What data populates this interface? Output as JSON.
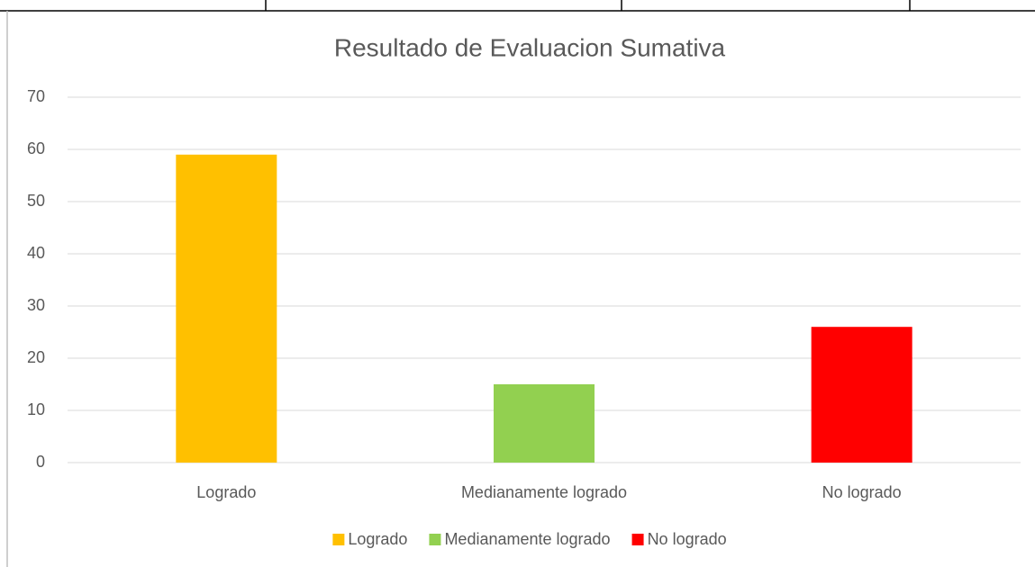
{
  "chart_data": {
    "type": "bar",
    "title": "Resultado de Evaluacion Sumativa",
    "categories": [
      "Logrado",
      "Medianamente logrado",
      "No logrado"
    ],
    "values": [
      59,
      15,
      26
    ],
    "colors": [
      "#ffc000",
      "#92d050",
      "#ff0000"
    ],
    "ylim": [
      0,
      70
    ],
    "yticks": [
      0,
      10,
      20,
      30,
      40,
      50,
      60,
      70
    ],
    "grid": true,
    "legend": "bottom"
  }
}
